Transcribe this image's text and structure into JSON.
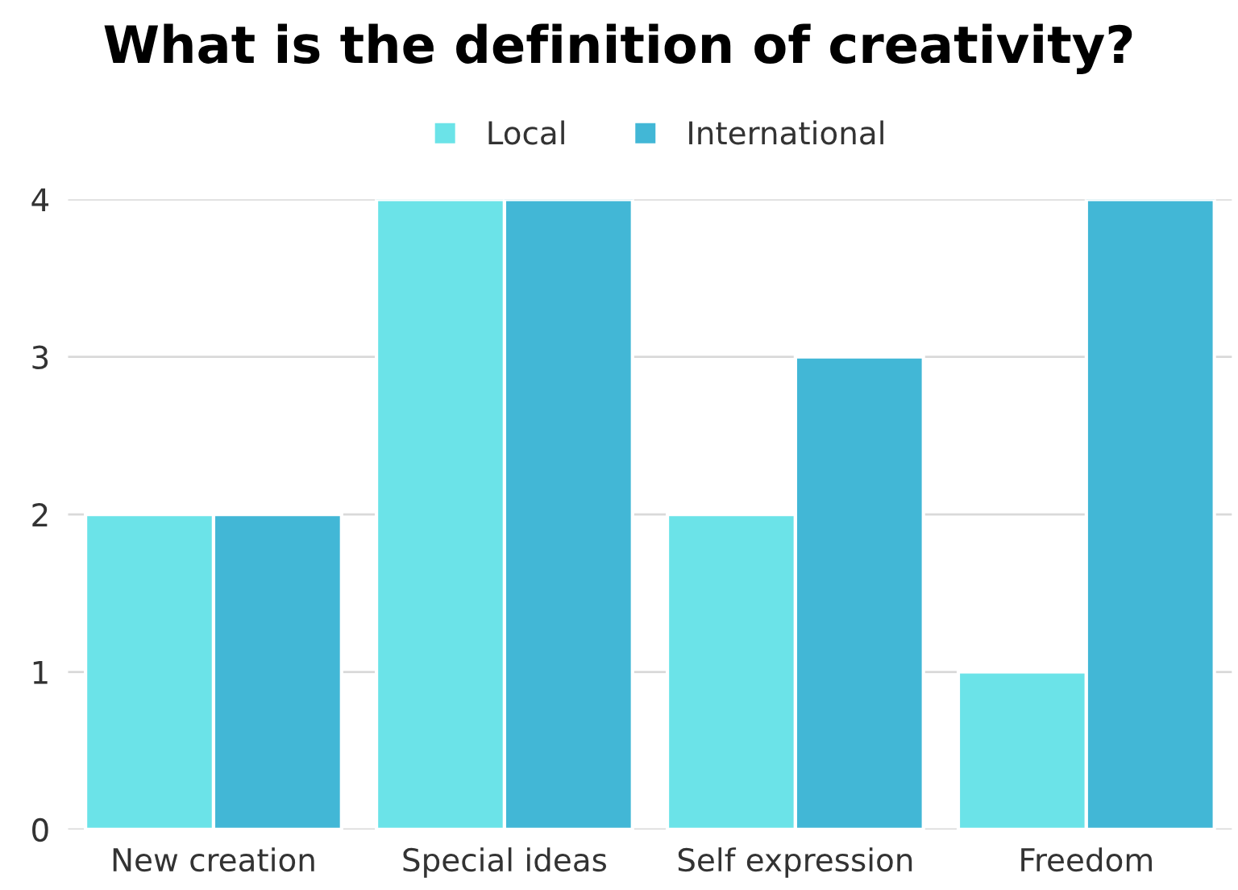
{
  "chart_data": {
    "type": "bar",
    "title": "What is the definition of creativity?",
    "categories": [
      "New creation",
      "Special ideas",
      "Self expression",
      "Freedom"
    ],
    "series": [
      {
        "name": "Local",
        "color": "#6be3e8",
        "values": [
          2,
          4,
          2,
          1
        ]
      },
      {
        "name": "International",
        "color": "#42b7d6",
        "values": [
          2,
          4,
          3,
          4
        ]
      }
    ],
    "ylim": [
      0,
      4
    ],
    "yticks": [
      0,
      1,
      2,
      3,
      4
    ],
    "grid": "y",
    "legend": "top"
  }
}
